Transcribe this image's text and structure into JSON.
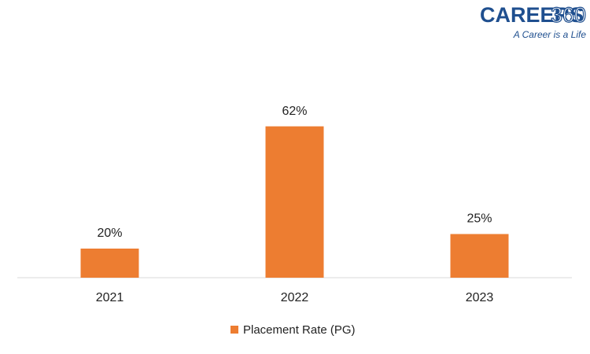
{
  "logo": {
    "brand": "CAREERS",
    "number": "360",
    "tagline": "A Career is a Life"
  },
  "chart_data": {
    "type": "bar",
    "categories": [
      "2021",
      "2022",
      "2023"
    ],
    "series": [
      {
        "name": "Placement Rate (PG)",
        "color": "#ed7d31",
        "values": [
          20,
          62,
          25
        ],
        "value_labels": [
          "20%",
          "62%",
          "25%"
        ]
      }
    ],
    "ylim": [
      10,
      70
    ],
    "legend": "bottom"
  }
}
